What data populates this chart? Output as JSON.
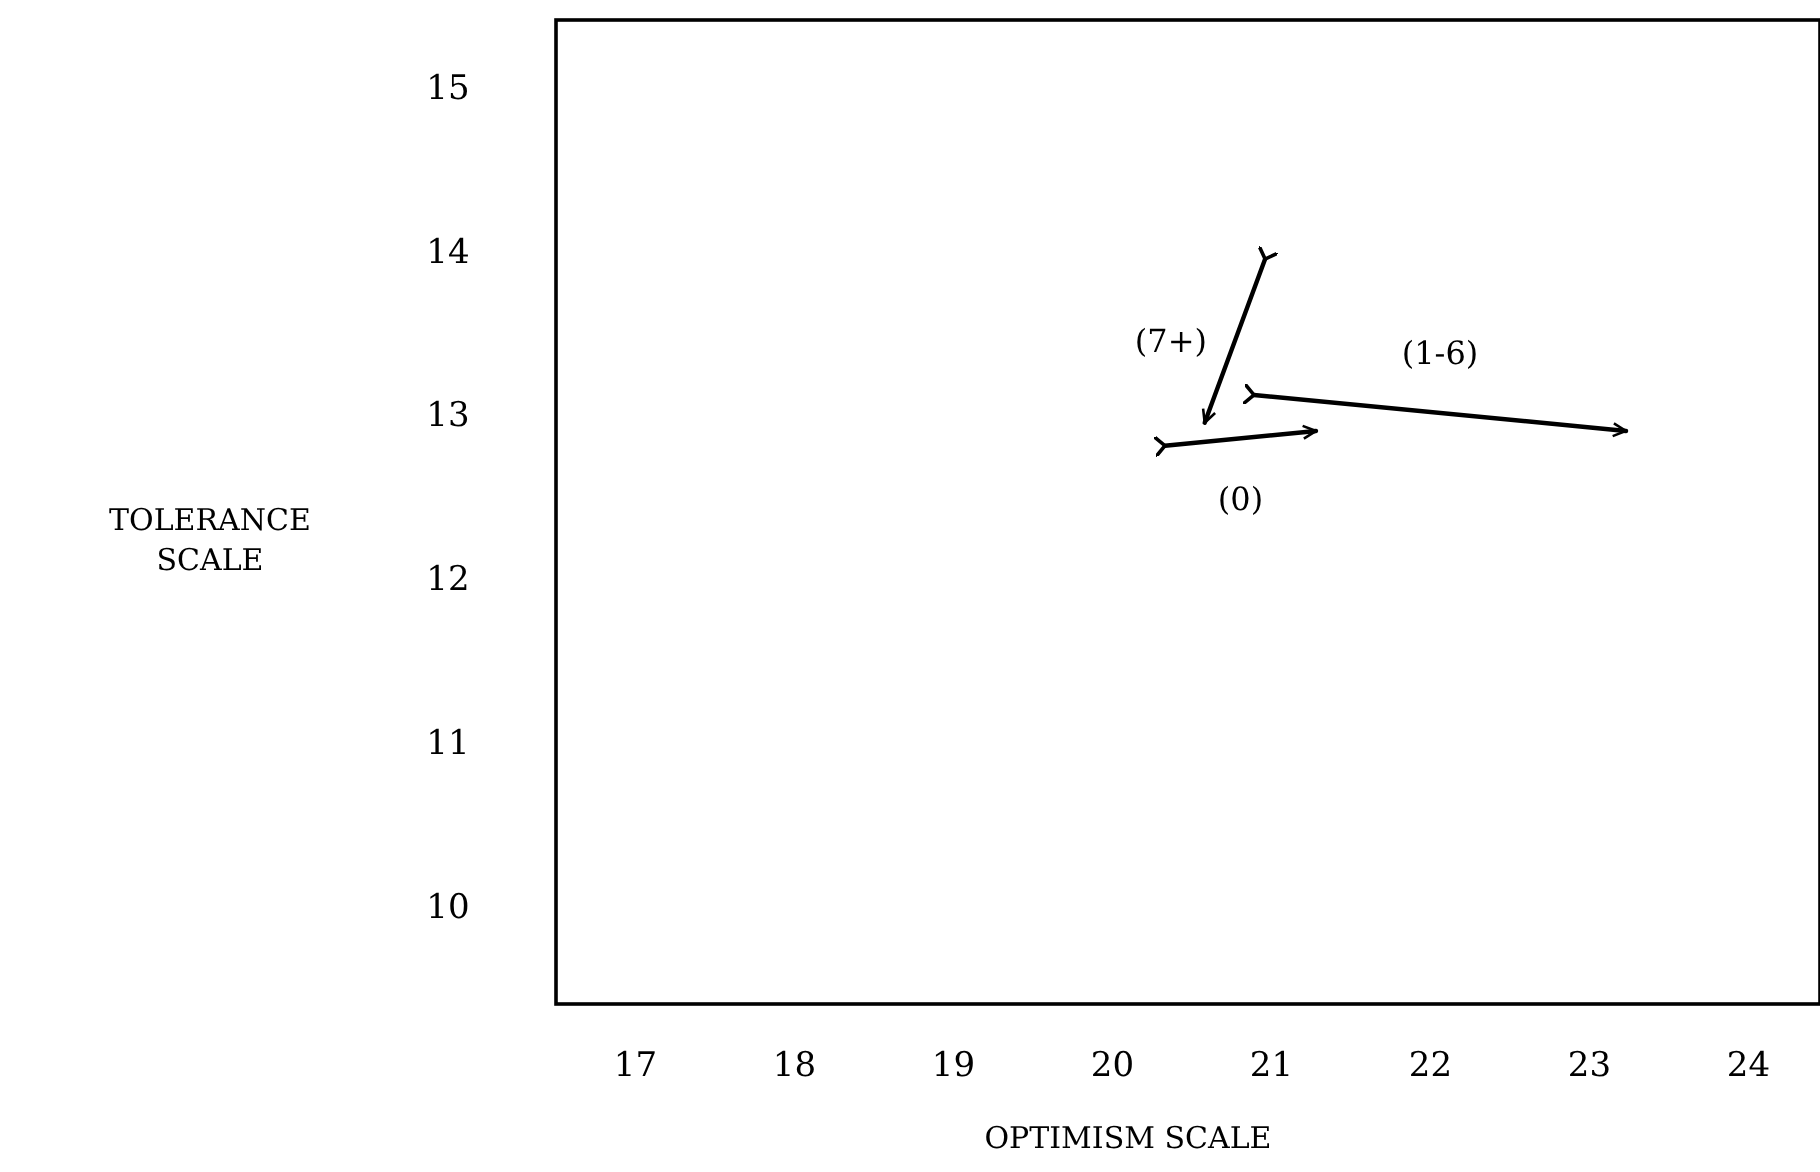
{
  "chart_data": {
    "type": "line",
    "xlabel": "OPTIMISM SCALE",
    "ylabel": "TOLERANCE\nSCALE",
    "xlim": [
      16.5,
      24.45
    ],
    "xticks": [
      17,
      18,
      19,
      20,
      21,
      22,
      23,
      24
    ],
    "ylim": [
      9.4,
      15.41
    ],
    "yticks": [
      10,
      11,
      12,
      13,
      14,
      15
    ],
    "grid": false,
    "marker": "none",
    "line_style": "solid",
    "series": [
      {
        "name": "(7+)",
        "color": "#000000",
        "x": [
          20.96,
          20.58
        ],
        "values": [
          13.95,
          12.95
        ]
      },
      {
        "name": "(0)",
        "color": "#000000",
        "x": [
          20.33,
          21.28
        ],
        "values": [
          12.81,
          12.9
        ]
      },
      {
        "name": "(1-6)",
        "color": "#000000",
        "x": [
          20.89,
          23.23
        ],
        "values": [
          13.12,
          12.9
        ]
      }
    ]
  }
}
